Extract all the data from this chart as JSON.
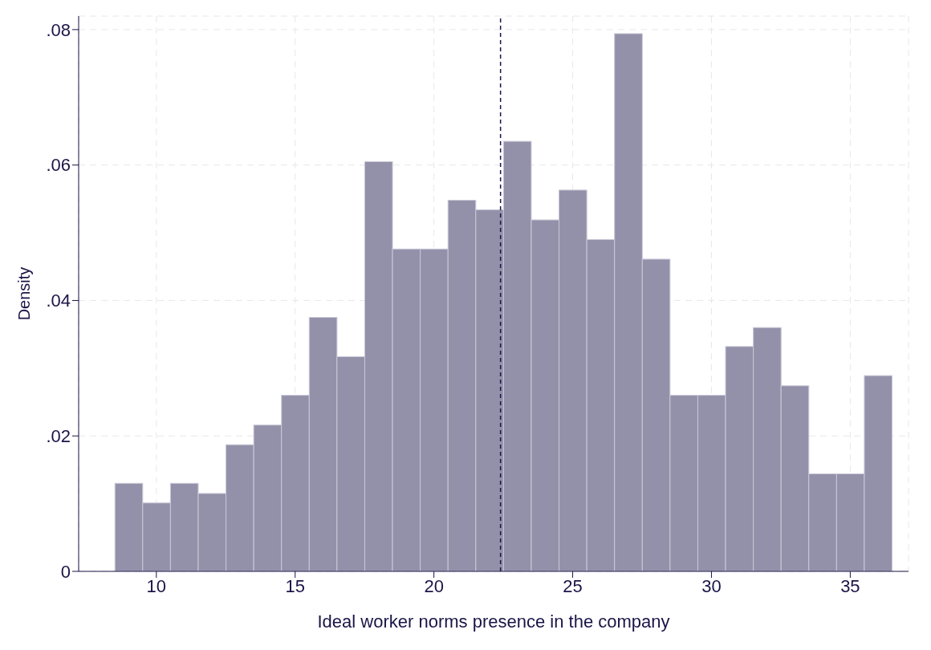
{
  "chart_data": {
    "type": "histogram",
    "xlabel": "Ideal worker norms presence in the company",
    "ylabel": "Density",
    "bins": [
      8.5,
      9.5,
      10.5,
      11.5,
      12.5,
      13.5,
      14.5,
      15.5,
      16.5,
      17.5,
      18.5,
      19.5,
      20.5,
      21.5,
      22.5,
      23.5,
      24.5,
      25.5,
      26.5,
      27.5,
      28.5,
      29.5,
      30.5,
      31.5,
      32.5,
      33.5,
      34.5,
      35.5,
      36.5
    ],
    "values": [
      0.013,
      0.0101,
      0.013,
      0.0115,
      0.0187,
      0.0216,
      0.026,
      0.0375,
      0.0317,
      0.0605,
      0.0476,
      0.0476,
      0.0548,
      0.0534,
      0.0635,
      0.0519,
      0.0563,
      0.049,
      0.0794,
      0.0461,
      0.026,
      0.026,
      0.0332,
      0.036,
      0.0274,
      0.0144,
      0.0144,
      0.0289
    ],
    "color": "#9391aa",
    "xlim": [
      7.2,
      37.1
    ],
    "xticks": [
      10,
      15,
      20,
      25,
      30,
      35
    ],
    "ylim": [
      0,
      0.082
    ],
    "yticks": [
      {
        "value": 0,
        "label": "0"
      },
      {
        "value": 0.02,
        "label": ".02"
      },
      {
        "value": 0.04,
        "label": ".04"
      },
      {
        "value": 0.06,
        "label": ".06"
      },
      {
        "value": 0.08,
        "label": ".08"
      }
    ],
    "grid": true,
    "ref_lines": [
      {
        "axis": "x",
        "value": 22.4,
        "color": "#1a1446",
        "line_style": "dashed"
      }
    ]
  }
}
